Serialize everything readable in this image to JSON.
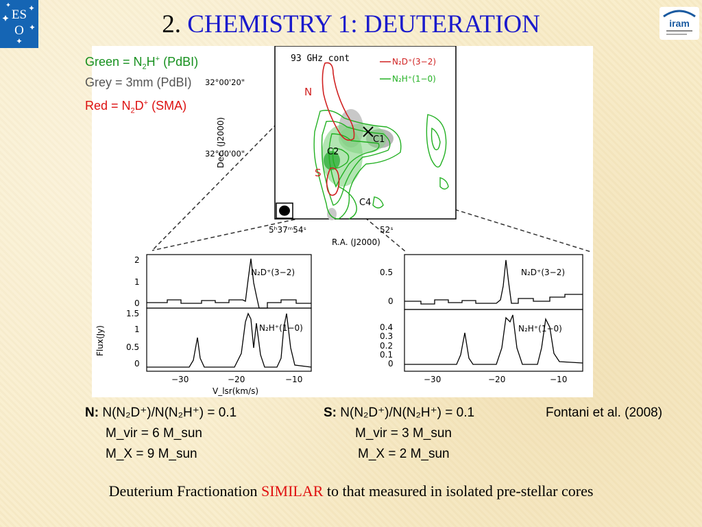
{
  "slide": {
    "title_number": "2.",
    "title_text": "CHEMISTRY 1: DEUTERATION"
  },
  "logos": {
    "eso": "ESO",
    "iram": "iram"
  },
  "legend": {
    "green_prefix": "Green = N",
    "green_sub": "2",
    "green_mid": "H",
    "green_sup": "+",
    "green_suffix": " (PdBI)",
    "grey": "Grey = 3mm (PdBI)",
    "red_prefix": "Red = N",
    "red_sub": "2",
    "red_mid": "D",
    "red_sup": "+",
    "red_suffix": " (SMA)"
  },
  "map": {
    "label": "93 GHz cont",
    "legend_n2d": "N₂D⁺(3−2)",
    "legend_n2h": "N₂H⁺(1−0)",
    "dec_label": "Dec. (J2000)",
    "dec_ticks": [
      "32°00'20\"",
      "32°00'00\""
    ],
    "ra_label": "R.A. (J2000)",
    "ra_ticks": [
      "5ʰ37ᵐ54ˢ",
      "52ˢ"
    ],
    "sources": [
      "N",
      "C1",
      "C2",
      "S",
      "C4"
    ]
  },
  "spectra": {
    "ylabel": "Flux(Jy)",
    "xlabel": "V_lsr(km/s)",
    "x_ticks": [
      "−30",
      "−20",
      "−10"
    ],
    "left_top_ticks": [
      "2",
      "1",
      "0"
    ],
    "left_bottom_ticks": [
      "1.5",
      "1",
      "0.5",
      "0"
    ],
    "right_top_ticks": [
      "0.5",
      "0"
    ],
    "right_bottom_ticks": [
      "0.4",
      "0.3",
      "0.2",
      "0.1",
      "0"
    ],
    "label_top": "N₂D⁺(3−2)",
    "label_bottom": "N₂H⁺(1−0)"
  },
  "results": {
    "n_label": "N:",
    "n_ratio": " N(N₂D⁺)/N(N₂H⁺) = 0.1",
    "n_mvir": "M_vir = 6 M_sun",
    "n_mx": "M_X = 9 M_sun",
    "s_label": "S:",
    "s_ratio": " N(N₂D⁺)/N(N₂H⁺) = 0.1",
    "s_mvir": "M_vir = 3 M_sun",
    "s_mx": "M_X = 2 M_sun",
    "reference": "Fontani et al. (2008)"
  },
  "footer": {
    "pre": "Deuterium Fractionation ",
    "highlight": "SIMILAR",
    "post": " to that measured in isolated pre-stellar cores"
  },
  "colors": {
    "title": "#1a1acc",
    "green": "#16901e",
    "red": "#dd1010",
    "highlight": "#e01010"
  }
}
